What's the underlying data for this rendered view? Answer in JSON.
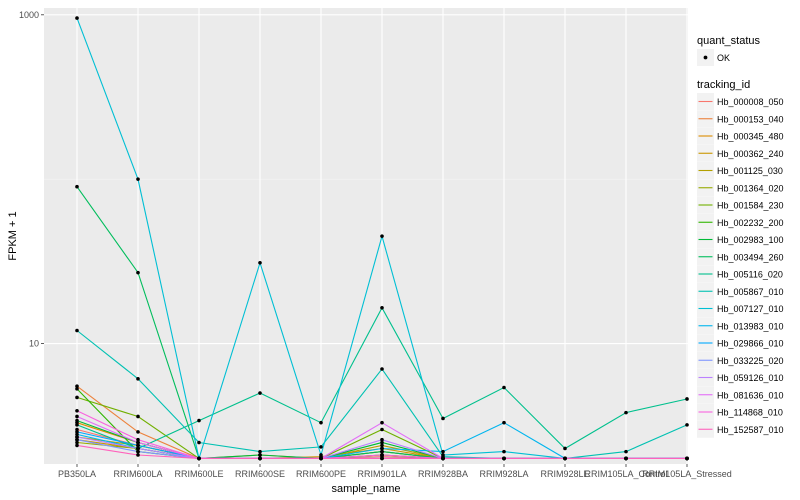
{
  "chart_data": {
    "type": "line",
    "xlabel": "sample_name",
    "ylabel": "FPKM + 1",
    "log_y": true,
    "ylim": [
      1.85,
      1100
    ],
    "y_ticks": [
      {
        "value": 10,
        "label": "10"
      },
      {
        "value": 1000,
        "label": "1000"
      }
    ],
    "categories": [
      "PB350LA",
      "RRIM600LA",
      "RRIM600LE",
      "RRIM600SE",
      "RRIM600PE",
      "RRIM901LA",
      "RRIM928BA",
      "RRIM928LA",
      "RRIM928LE",
      "RRIM105LA_Control",
      "RRIM105LA_Stressed"
    ],
    "grid": true,
    "legend_position": "right",
    "panel_color": "#ebebeb",
    "legends": {
      "quant_status": {
        "title": "quant_status",
        "items": [
          {
            "label": "OK",
            "color": "#000000"
          }
        ]
      },
      "tracking_id": {
        "title": "tracking_id"
      }
    },
    "series": [
      {
        "name": "Hb_000008_050",
        "color": "#F8766D",
        "values": [
          3.0,
          2.4,
          2.0,
          2.0,
          2.0,
          2.05,
          2.0,
          2.0,
          2.0,
          2.0,
          2.0
        ]
      },
      {
        "name": "Hb_000153_040",
        "color": "#EC823C",
        "values": [
          5.5,
          2.9,
          2.0,
          2.1,
          2.0,
          2.1,
          2.0,
          2.0,
          2.0,
          2.0,
          2.0
        ]
      },
      {
        "name": "Hb_000345_480",
        "color": "#DD8D00",
        "values": [
          3.3,
          2.5,
          2.0,
          2.0,
          2.0,
          2.2,
          2.0,
          2.0,
          2.0,
          2.0,
          2.0
        ]
      },
      {
        "name": "Hb_000362_240",
        "color": "#CA9700",
        "values": [
          2.6,
          2.3,
          2.0,
          2.0,
          2.05,
          2.3,
          2.0,
          2.0,
          2.0,
          2.0,
          2.0
        ]
      },
      {
        "name": "Hb_001125_030",
        "color": "#B3A000",
        "values": [
          2.7,
          2.4,
          2.0,
          2.0,
          2.0,
          2.4,
          2.0,
          2.0,
          2.0,
          2.0,
          2.0
        ]
      },
      {
        "name": "Hb_001364_020",
        "color": "#97A900",
        "values": [
          2.5,
          2.3,
          2.0,
          2.0,
          2.0,
          2.2,
          2.0,
          2.0,
          2.0,
          2.0,
          2.0
        ]
      },
      {
        "name": "Hb_001584_230",
        "color": "#71B000",
        "values": [
          4.7,
          3.6,
          2.0,
          2.0,
          2.0,
          3.0,
          2.0,
          2.0,
          2.0,
          2.0,
          2.0
        ]
      },
      {
        "name": "Hb_002232_200",
        "color": "#2FB600",
        "values": [
          5.3,
          2.2,
          2.0,
          2.0,
          2.0,
          2.1,
          2.0,
          2.0,
          2.0,
          2.0,
          2.0
        ]
      },
      {
        "name": "Hb_002983_100",
        "color": "#00BA38",
        "values": [
          3.4,
          2.5,
          2.0,
          2.1,
          2.0,
          2.5,
          2.0,
          2.0,
          2.0,
          2.0,
          2.0
        ]
      },
      {
        "name": "Hb_003494_260",
        "color": "#00BD5C",
        "values": [
          90,
          27,
          2.0,
          2.0,
          2.0,
          2.2,
          2.0,
          2.0,
          2.0,
          2.0,
          2.0
        ]
      },
      {
        "name": "Hb_005116_020",
        "color": "#00C08D",
        "values": [
          3.2,
          2.3,
          3.4,
          5.0,
          3.3,
          16.5,
          3.5,
          5.4,
          2.3,
          3.8,
          4.6
        ]
      },
      {
        "name": "Hb_005867_010",
        "color": "#00C1B2",
        "values": [
          12,
          6.1,
          2.5,
          2.2,
          2.35,
          7.0,
          2.05,
          2.0,
          2.0,
          2.2,
          3.2
        ]
      },
      {
        "name": "Hb_007127_010",
        "color": "#00BFD4",
        "values": [
          955,
          100,
          2.0,
          31,
          2.1,
          45,
          2.1,
          2.2,
          2.0,
          2.0,
          2.0
        ]
      },
      {
        "name": "Hb_013983_010",
        "color": "#00B5EE",
        "values": [
          2.8,
          2.3,
          2.0,
          2.0,
          2.0,
          2.3,
          2.2,
          3.3,
          2.0,
          2.0,
          2.0
        ]
      },
      {
        "name": "Hb_029866_010",
        "color": "#00A8FF",
        "values": [
          2.9,
          2.4,
          2.0,
          2.0,
          2.0,
          2.0,
          2.0,
          2.0,
          2.0,
          2.0,
          2.0
        ]
      },
      {
        "name": "Hb_033225_020",
        "color": "#7F96FF",
        "values": [
          2.6,
          2.2,
          2.0,
          2.0,
          2.0,
          2.0,
          2.0,
          2.0,
          2.0,
          2.0,
          2.0
        ]
      },
      {
        "name": "Hb_059126_010",
        "color": "#BB81FF",
        "values": [
          2.7,
          2.3,
          2.0,
          2.0,
          2.0,
          2.6,
          2.0,
          2.0,
          2.0,
          2.0,
          2.0
        ]
      },
      {
        "name": "Hb_081636_010",
        "color": "#E26EF7",
        "values": [
          3.6,
          2.5,
          2.0,
          2.0,
          2.0,
          3.3,
          2.0,
          2.0,
          2.0,
          2.0,
          2.0
        ]
      },
      {
        "name": "Hb_114868_010",
        "color": "#F863DF",
        "values": [
          3.9,
          2.6,
          2.0,
          2.0,
          2.0,
          2.1,
          2.0,
          2.0,
          2.0,
          2.0,
          2.0
        ]
      },
      {
        "name": "Hb_152587_010",
        "color": "#FF62BC",
        "values": [
          2.4,
          2.1,
          2.0,
          2.0,
          2.0,
          2.0,
          2.0,
          2.0,
          2.0,
          2.0,
          2.0
        ]
      }
    ]
  }
}
